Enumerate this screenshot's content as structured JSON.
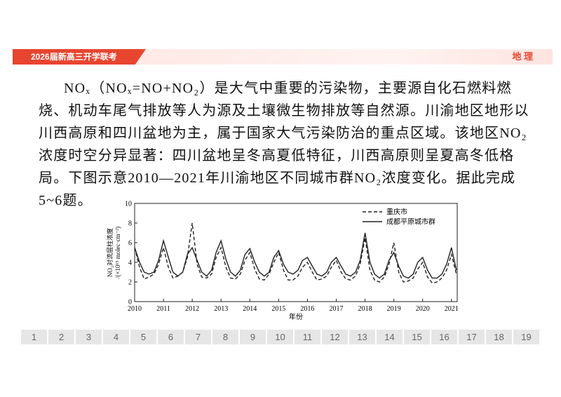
{
  "header": {
    "exam": "2026届新高三开学联考",
    "subject": "地 理"
  },
  "passage": "NOₓ（NOₓ=NO+NO₂）是大气中重要的污染物，主要源自化石燃料燃烧、机动车尾气排放等人为源及土壤微生物排放等自然源。川渝地区地形以川西高原和四川盆地为主，属于国家大气污染防治的重点区域。该地区NO₂浓度时空分异显著：四川盆地呈冬高夏低特征，川西高原则呈夏高冬低格局。下图示意2010—2021年川渝地区不同城市群NO₂浓度变化。据此完成5~6题。",
  "chart_data": {
    "type": "line",
    "ylabel": [
      "NO₂对流层柱浓度",
      "/(×10¹⁵ molec·cm⁻²)"
    ],
    "xlabel": "年份",
    "x": [
      2010,
      2010.17,
      2010.33,
      2010.5,
      2010.67,
      2010.83,
      2011,
      2011.17,
      2011.33,
      2011.5,
      2011.67,
      2011.83,
      2012,
      2012.17,
      2012.33,
      2012.5,
      2012.67,
      2012.83,
      2013,
      2013.17,
      2013.33,
      2013.5,
      2013.67,
      2013.83,
      2014,
      2014.17,
      2014.33,
      2014.5,
      2014.67,
      2014.83,
      2015,
      2015.17,
      2015.33,
      2015.5,
      2015.67,
      2015.83,
      2016,
      2016.17,
      2016.33,
      2016.5,
      2016.67,
      2016.83,
      2017,
      2017.17,
      2017.33,
      2017.5,
      2017.67,
      2017.83,
      2018,
      2018.17,
      2018.33,
      2018.5,
      2018.67,
      2018.83,
      2019,
      2019.17,
      2019.33,
      2019.5,
      2019.67,
      2019.83,
      2020,
      2020.17,
      2020.33,
      2020.5,
      2020.67,
      2020.83,
      2021,
      2021.17
    ],
    "series": [
      {
        "name": "重庆市",
        "color": "#222222",
        "line_style": "dashed",
        "values": [
          5.5,
          3.5,
          2.3,
          2.5,
          2.8,
          3.8,
          5.5,
          3.5,
          2.4,
          2.6,
          3.0,
          4.5,
          8.0,
          3.8,
          2.5,
          2.4,
          2.8,
          4.5,
          5.5,
          3.5,
          2.4,
          2.3,
          2.8,
          4.2,
          5.0,
          3.3,
          2.3,
          2.2,
          2.8,
          4.0,
          5.0,
          3.2,
          2.2,
          2.2,
          2.6,
          3.5,
          4.0,
          3.0,
          2.2,
          2.3,
          2.6,
          3.5,
          4.2,
          3.0,
          2.3,
          2.2,
          2.6,
          3.8,
          6.5,
          3.2,
          2.2,
          2.0,
          2.5,
          3.8,
          6.0,
          3.0,
          2.0,
          2.1,
          2.4,
          3.3,
          4.0,
          2.5,
          1.9,
          2.0,
          2.4,
          3.2,
          4.8,
          2.8
        ]
      },
      {
        "name": "成都平原城市群",
        "color": "#222222",
        "line_style": "solid",
        "values": [
          5.5,
          4.0,
          3.0,
          2.8,
          3.0,
          4.2,
          6.2,
          4.5,
          3.0,
          2.6,
          3.0,
          4.8,
          5.5,
          4.2,
          3.0,
          2.6,
          3.2,
          5.0,
          6.2,
          4.3,
          3.0,
          2.6,
          3.2,
          4.8,
          5.4,
          4.0,
          3.0,
          2.6,
          3.0,
          4.5,
          5.2,
          3.8,
          3.0,
          2.8,
          3.2,
          4.2,
          4.5,
          3.6,
          2.8,
          2.6,
          3.0,
          4.0,
          4.5,
          3.6,
          2.8,
          2.6,
          3.0,
          4.2,
          7.0,
          4.0,
          2.8,
          2.4,
          2.8,
          4.2,
          5.0,
          3.6,
          2.6,
          2.4,
          2.8,
          4.0,
          4.5,
          3.2,
          2.4,
          2.4,
          2.8,
          3.8,
          5.5,
          3.2
        ]
      }
    ],
    "xlim": [
      2010,
      2021.2
    ],
    "xticks": [
      2010,
      2011,
      2012,
      2013,
      2014,
      2015,
      2016,
      2017,
      2018,
      2019,
      2020,
      2021
    ],
    "ylim": [
      0,
      10
    ],
    "yticks": [
      0,
      2,
      4,
      6,
      8,
      10
    ],
    "legend": "top-right"
  },
  "pagination": [
    1,
    2,
    3,
    4,
    5,
    6,
    7,
    8,
    9,
    10,
    11,
    12,
    13,
    14,
    15,
    16,
    17,
    18,
    19
  ]
}
